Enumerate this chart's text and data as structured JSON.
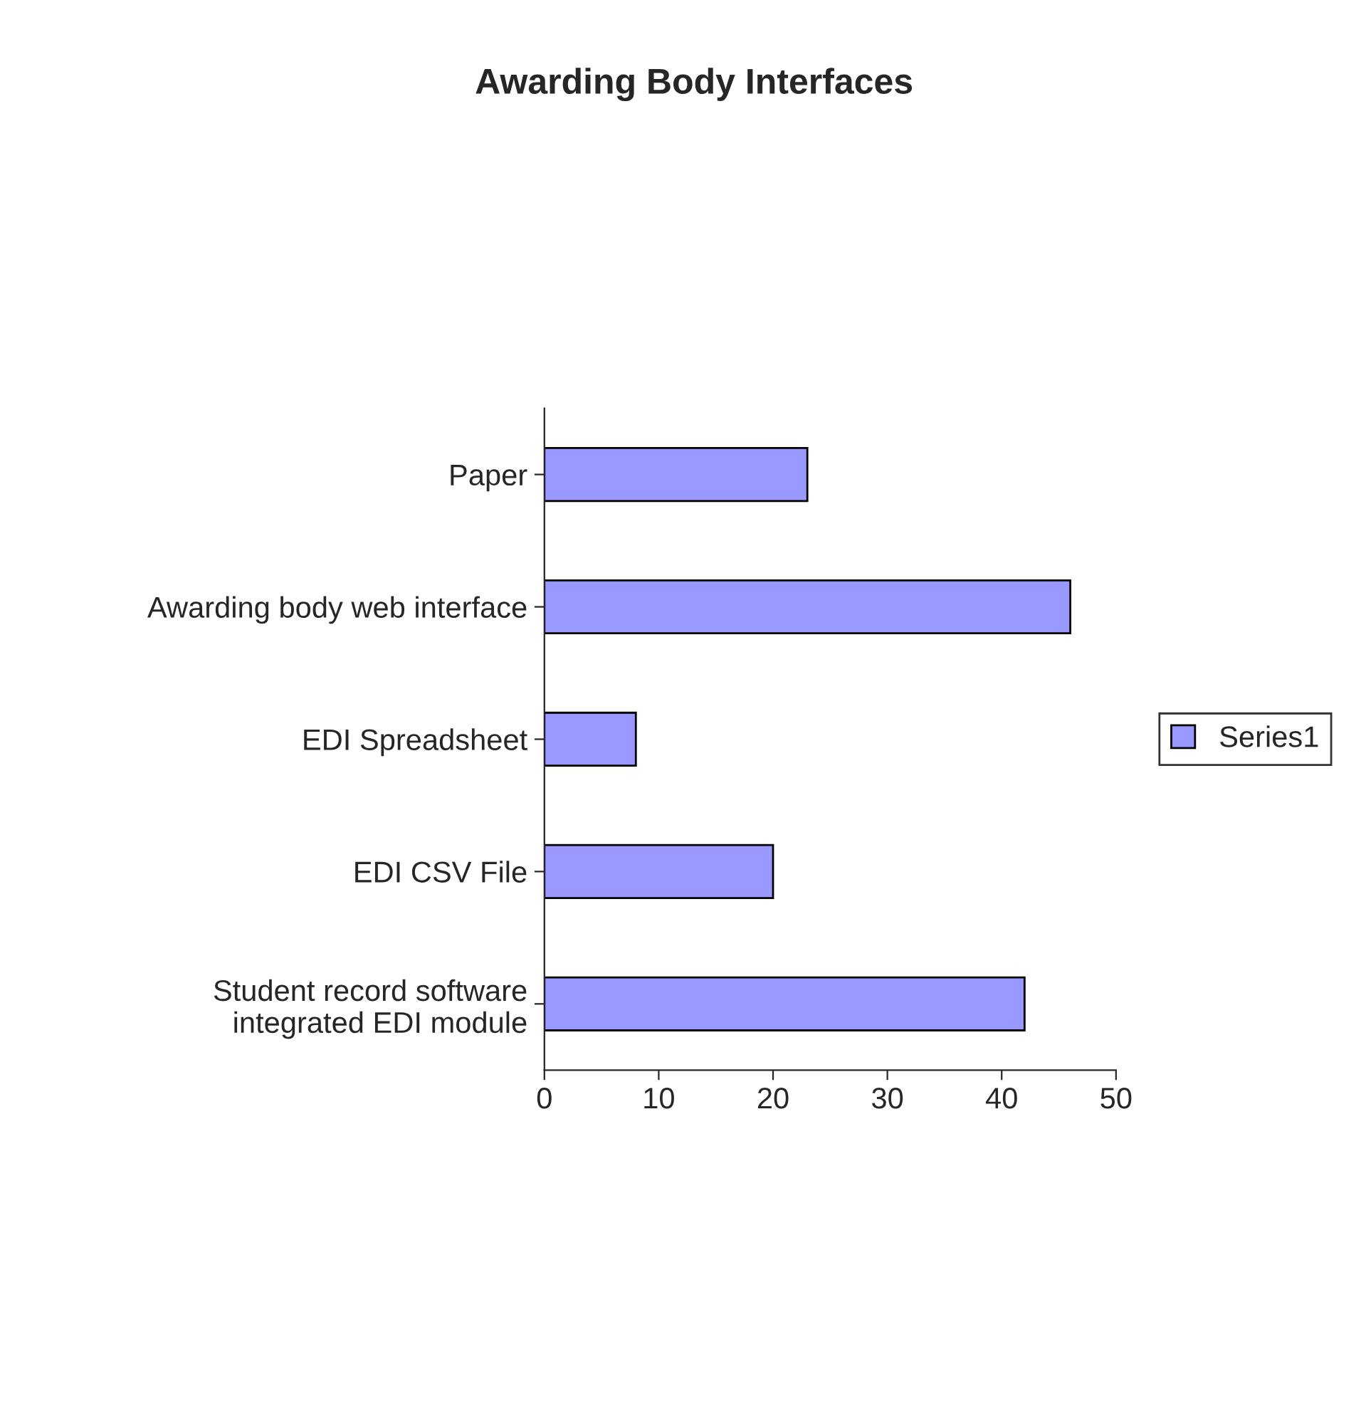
{
  "chart_data": {
    "type": "bar",
    "title": "Awarding Body Interfaces",
    "orientation": "horizontal",
    "categories": [
      "Paper",
      "Awarding body web interface",
      "EDI Spreadsheet",
      "EDI CSV File",
      "Student record software\nintegrated EDI module"
    ],
    "series": [
      {
        "name": "Series1",
        "color": "#9999ff",
        "values": [
          23,
          46,
          8,
          20,
          42
        ]
      }
    ],
    "xlim": [
      0,
      50
    ],
    "xticks": [
      0,
      10,
      20,
      30,
      40,
      50
    ],
    "grid": false,
    "legend": "right"
  }
}
